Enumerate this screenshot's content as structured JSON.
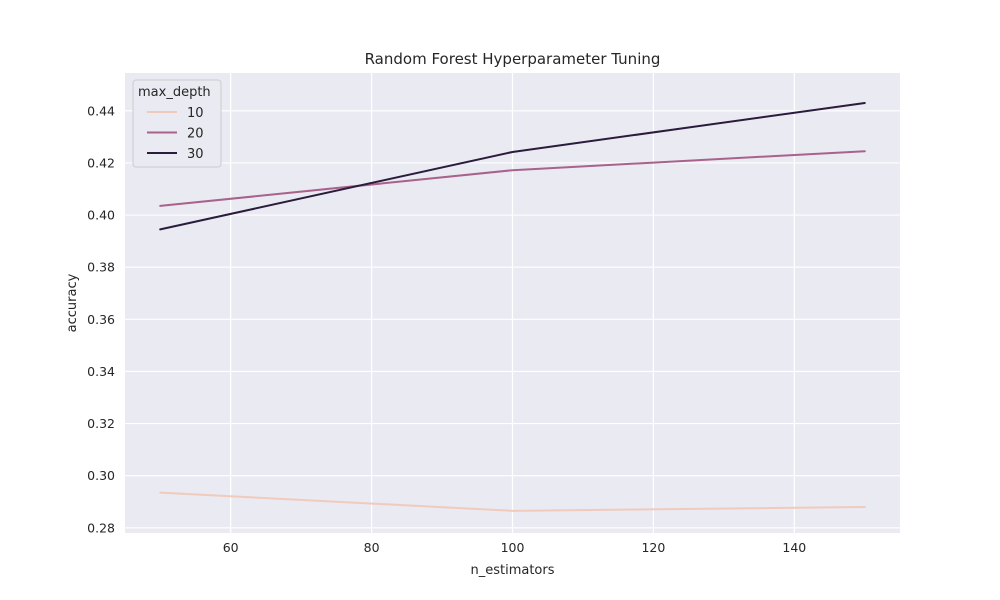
{
  "chart_data": {
    "type": "line",
    "title": "Random Forest Hyperparameter Tuning",
    "xlabel": "n_estimators",
    "ylabel": "accuracy",
    "x": [
      50,
      100,
      150
    ],
    "xlim": [
      45,
      155
    ],
    "ylim": [
      0.278,
      0.4545
    ],
    "xticks": [
      60,
      80,
      100,
      120,
      140
    ],
    "yticks": [
      0.28,
      0.3,
      0.32,
      0.34,
      0.36,
      0.38,
      0.4,
      0.42,
      0.44
    ],
    "grid": true,
    "legend": {
      "title": "max_depth",
      "placement": "top-left"
    },
    "series": [
      {
        "name": "10",
        "color": "#f0cbbc",
        "values": [
          0.2935,
          0.2865,
          0.288
        ]
      },
      {
        "name": "20",
        "color": "#a8628c",
        "values": [
          0.4035,
          0.4172,
          0.4245
        ]
      },
      {
        "name": "30",
        "color": "#2b1b3c",
        "values": [
          0.3945,
          0.4242,
          0.443
        ]
      }
    ]
  }
}
